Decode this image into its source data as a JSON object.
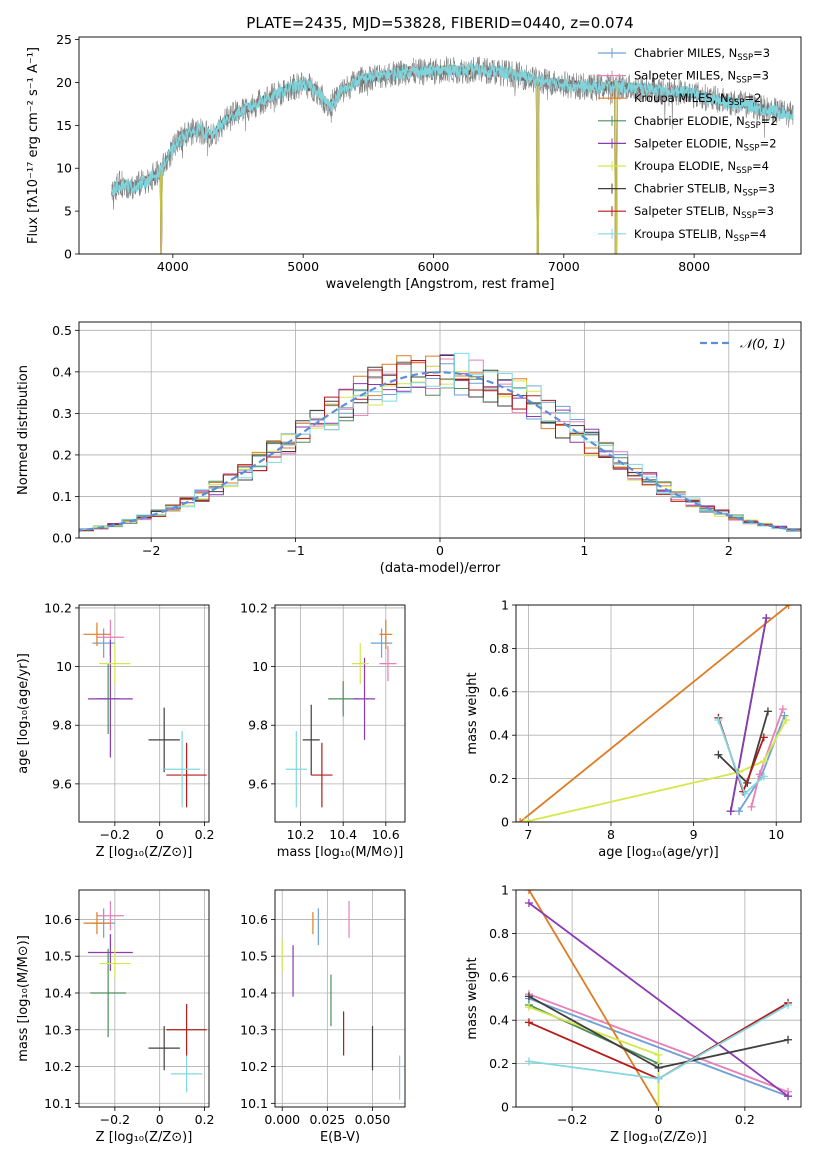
{
  "page_title": "PLATE=2435, MJD=53828, FIBERID=0440, z=0.074",
  "colors": {
    "Chabrier MILES": "#6fa0d6",
    "Salpeter MILES": "#e87fb6",
    "Kroupa MILES": "#de7c24",
    "Chabrier ELODIE": "#4c8f5c",
    "Salpeter ELODIE": "#8a3ab2",
    "Kroupa ELODIE": "#d4e84c",
    "Chabrier STELIB": "#404040",
    "Salpeter STELIB": "#b51b1b",
    "Kroupa STELIB": "#80d8e0",
    "normal": "#5b8fd8"
  },
  "chart_data": [
    {
      "id": "spectrum",
      "type": "line",
      "title": "PLATE=2435, MJD=53828, FIBERID=0440, z=0.074",
      "xlabel": "wavelength [Angstrom, rest frame]",
      "ylabel": "Flux [fλ10⁻¹⁷ erg cm⁻² s⁻¹ A⁻¹]",
      "xlim": [
        3280,
        8820
      ],
      "ylim": [
        0,
        25.3
      ],
      "xticks": [
        4000,
        5000,
        6000,
        7000,
        8000
      ],
      "yticks": [
        0,
        5,
        10,
        15,
        20,
        25
      ],
      "legend_position": "top-right",
      "legend": [
        {
          "label": "Chabrier MILES, N",
          "sub": "SSP",
          "tail": "=3"
        },
        {
          "label": "Salpeter MILES, N",
          "sub": "SSP",
          "tail": "=3"
        },
        {
          "label": "Kroupa MILES, N",
          "sub": "SSP",
          "tail": "=2"
        },
        {
          "label": "Chabrier ELODIE, N",
          "sub": "SSP",
          "tail": "=2"
        },
        {
          "label": "Salpeter ELODIE, N",
          "sub": "SSP",
          "tail": "=2"
        },
        {
          "label": "Kroupa ELODIE, N",
          "sub": "SSP",
          "tail": "=4"
        },
        {
          "label": "Chabrier STELIB, N",
          "sub": "SSP",
          "tail": "=3"
        },
        {
          "label": "Salpeter STELIB, N",
          "sub": "SSP",
          "tail": "=3"
        },
        {
          "label": "Kroupa STELIB, N",
          "sub": "SSP",
          "tail": "=4"
        }
      ],
      "continuum": {
        "x": [
          3530,
          3600,
          3700,
          3800,
          3900,
          4000,
          4100,
          4200,
          4300,
          4400,
          4500,
          4600,
          4700,
          4800,
          4900,
          5000,
          5100,
          5200,
          5300,
          5400,
          5500,
          5600,
          5700,
          5800,
          5900,
          6000,
          6100,
          6200,
          6300,
          6400,
          6500,
          6600,
          6700,
          6800,
          6900,
          7000,
          7100,
          7200,
          7300,
          7400,
          7500,
          7600,
          7700,
          7800,
          7900,
          8000,
          8100,
          8200,
          8300,
          8400,
          8500,
          8600,
          8700,
          8760
        ],
        "y": [
          7.5,
          8.2,
          7.8,
          8.6,
          9.5,
          12.2,
          14.0,
          14.5,
          13.8,
          15.5,
          16.5,
          17.2,
          18.0,
          18.6,
          19.3,
          19.8,
          19.2,
          17.2,
          19.0,
          20.0,
          20.6,
          20.8,
          21.0,
          21.3,
          21.2,
          21.3,
          21.5,
          21.4,
          21.5,
          21.4,
          21.2,
          21.0,
          20.7,
          20.2,
          20.0,
          19.8,
          19.6,
          19.4,
          19.5,
          19.6,
          19.4,
          19.3,
          19.2,
          18.8,
          18.9,
          18.7,
          18.2,
          17.9,
          17.6,
          17.4,
          17.0,
          16.7,
          16.4,
          16.2
        ],
        "dips": [
          {
            "x": 3910,
            "y": 0
          },
          {
            "x": 3970,
            "y": 7.0
          },
          {
            "x": 4102,
            "y": 11.0
          },
          {
            "x": 4310,
            "y": 10.5
          },
          {
            "x": 4340,
            "y": 11.2
          },
          {
            "x": 4861,
            "y": 16.8
          },
          {
            "x": 5175,
            "y": 14.8
          },
          {
            "x": 5890,
            "y": 18.0
          },
          {
            "x": 6563,
            "y": 18.2
          },
          {
            "x": 6800,
            "y": 0
          },
          {
            "x": 7400,
            "y": 0
          }
        ],
        "note": ""
      }
    },
    {
      "id": "residuals",
      "type": "histogram",
      "xlabel": "(data-model)/error",
      "ylabel": "Normed distribution",
      "xlim": [
        -2.5,
        2.5
      ],
      "ylim": [
        0,
        0.52
      ],
      "xticks": [
        -2,
        -1,
        0,
        1,
        2
      ],
      "yticks": [
        0.0,
        0.1,
        0.2,
        0.3,
        0.4,
        0.5
      ],
      "legend_label": "𝒩(0, 1)",
      "legend_position": "top-right",
      "bin_width": 0.1,
      "bin_start": -2.6
    },
    {
      "id": "age_vs_Z",
      "type": "scatter",
      "xlabel": "Z [log₁₀(Z/Z⊙)]",
      "ylabel": "age  [log₁₀(age/yr)]",
      "xlim": [
        -0.36,
        0.22
      ],
      "ylim": [
        9.47,
        10.21
      ],
      "xticks": [
        -0.2,
        0.0,
        0.2
      ],
      "yticks": [
        9.6,
        9.8,
        10.0,
        10.2
      ],
      "points": [
        {
          "name": "Chabrier MILES",
          "x": -0.25,
          "y": 10.08,
          "xerr": 0.05,
          "yerr": 0.05
        },
        {
          "name": "Salpeter MILES",
          "x": -0.22,
          "y": 10.1,
          "xerr": 0.06,
          "yerr": 0.06
        },
        {
          "name": "Kroupa MILES",
          "x": -0.28,
          "y": 10.11,
          "xerr": 0.06,
          "yerr": 0.04
        },
        {
          "name": "Chabrier ELODIE",
          "x": -0.23,
          "y": 9.89,
          "xerr": 0.05,
          "yerr": 0.12
        },
        {
          "name": "Salpeter ELODIE",
          "x": -0.22,
          "y": 9.89,
          "xerr": 0.1,
          "yerr": 0.2
        },
        {
          "name": "Kroupa ELODIE",
          "x": -0.2,
          "y": 10.01,
          "xerr": 0.07,
          "yerr": 0.07
        },
        {
          "name": "Chabrier STELIB",
          "x": 0.02,
          "y": 9.75,
          "xerr": 0.07,
          "yerr": 0.11
        },
        {
          "name": "Salpeter STELIB",
          "x": 0.12,
          "y": 9.63,
          "xerr": 0.09,
          "yerr": 0.11
        },
        {
          "name": "Kroupa STELIB",
          "x": 0.1,
          "y": 9.65,
          "xerr": 0.08,
          "yerr": 0.13
        }
      ]
    },
    {
      "id": "age_vs_mass",
      "type": "scatter",
      "xlabel": "mass [log₁₀(M/M⊙)]",
      "ylabel": "",
      "xlim": [
        10.08,
        10.69
      ],
      "ylim": [
        9.47,
        10.21
      ],
      "xticks": [
        10.2,
        10.4,
        10.6
      ],
      "yticks": [
        9.6,
        9.8,
        10.0,
        10.2
      ],
      "points": [
        {
          "name": "Chabrier MILES",
          "x": 10.58,
          "y": 10.08,
          "xerr": 0.05,
          "yerr": 0.05
        },
        {
          "name": "Salpeter MILES",
          "x": 10.61,
          "y": 10.01,
          "xerr": 0.04,
          "yerr": 0.06
        },
        {
          "name": "Kroupa MILES",
          "x": 10.6,
          "y": 10.11,
          "xerr": 0.03,
          "yerr": 0.05
        },
        {
          "name": "Chabrier ELODIE",
          "x": 10.4,
          "y": 9.89,
          "xerr": 0.07,
          "yerr": 0.06
        },
        {
          "name": "Salpeter ELODIE",
          "x": 10.5,
          "y": 9.89,
          "xerr": 0.05,
          "yerr": 0.14
        },
        {
          "name": "Kroupa ELODIE",
          "x": 10.48,
          "y": 10.01,
          "xerr": 0.04,
          "yerr": 0.07
        },
        {
          "name": "Chabrier STELIB",
          "x": 10.25,
          "y": 9.75,
          "xerr": 0.04,
          "yerr": 0.12
        },
        {
          "name": "Salpeter STELIB",
          "x": 10.3,
          "y": 9.63,
          "xerr": 0.05,
          "yerr": 0.11
        },
        {
          "name": "Kroupa STELIB",
          "x": 10.18,
          "y": 9.65,
          "xerr": 0.05,
          "yerr": 0.13
        }
      ]
    },
    {
      "id": "weight_vs_age",
      "type": "line",
      "xlabel": "age  [log₁₀(age/yr)]",
      "ylabel": "mass weight",
      "xlim": [
        6.85,
        10.3
      ],
      "ylim": [
        0,
        1.0
      ],
      "xticks": [
        7,
        8,
        9,
        10
      ],
      "yticks": [
        0.0,
        0.2,
        0.4,
        0.6,
        0.8,
        1.0
      ],
      "series": [
        {
          "name": "Chabrier MILES",
          "x": [
            9.55,
            9.82,
            10.1
          ],
          "y": [
            0.05,
            0.21,
            0.49
          ]
        },
        {
          "name": "Salpeter MILES",
          "x": [
            9.7,
            9.8,
            10.08
          ],
          "y": [
            0.07,
            0.22,
            0.52
          ]
        },
        {
          "name": "Kroupa MILES",
          "x": [
            6.9,
            10.15
          ],
          "y": [
            0.0,
            1.0
          ]
        },
        {
          "name": "Chabrier ELODIE",
          "x": [
            9.45,
            9.88
          ],
          "y": [
            0.05,
            0.94
          ]
        },
        {
          "name": "Salpeter ELODIE",
          "x": [
            9.45,
            9.88
          ],
          "y": [
            0.05,
            0.94
          ]
        },
        {
          "name": "Kroupa ELODIE",
          "x": [
            6.95,
            9.55,
            9.85,
            10.12
          ],
          "y": [
            0.0,
            0.23,
            0.28,
            0.47
          ]
        },
        {
          "name": "Chabrier STELIB",
          "x": [
            9.3,
            9.65,
            9.9
          ],
          "y": [
            0.31,
            0.18,
            0.51
          ]
        },
        {
          "name": "Salpeter STELIB",
          "x": [
            9.3,
            9.6,
            9.85
          ],
          "y": [
            0.48,
            0.14,
            0.39
          ]
        },
        {
          "name": "Kroupa STELIB",
          "x": [
            9.3,
            9.62,
            9.85
          ],
          "y": [
            0.47,
            0.13,
            0.21
          ]
        }
      ]
    },
    {
      "id": "mass_vs_Z",
      "type": "scatter",
      "xlabel": "Z [log₁₀(Z/Z⊙)]",
      "ylabel": "mass [log₁₀(M/M⊙)]",
      "xlim": [
        -0.36,
        0.22
      ],
      "ylim": [
        10.09,
        10.68
      ],
      "xticks": [
        -0.2,
        0.0,
        0.2
      ],
      "yticks": [
        10.1,
        10.2,
        10.3,
        10.4,
        10.5,
        10.6
      ],
      "points": [
        {
          "name": "Chabrier MILES",
          "x": -0.25,
          "y": 10.59,
          "xerr": 0.05,
          "yerr": 0.04
        },
        {
          "name": "Salpeter MILES",
          "x": -0.22,
          "y": 10.61,
          "xerr": 0.06,
          "yerr": 0.04
        },
        {
          "name": "Kroupa MILES",
          "x": -0.28,
          "y": 10.59,
          "xerr": 0.06,
          "yerr": 0.03
        },
        {
          "name": "Chabrier ELODIE",
          "x": -0.23,
          "y": 10.4,
          "xerr": 0.08,
          "yerr": 0.12
        },
        {
          "name": "Salpeter ELODIE",
          "x": -0.22,
          "y": 10.51,
          "xerr": 0.1,
          "yerr": 0.05
        },
        {
          "name": "Kroupa ELODIE",
          "x": -0.2,
          "y": 10.48,
          "xerr": 0.07,
          "yerr": 0.04
        },
        {
          "name": "Chabrier STELIB",
          "x": 0.02,
          "y": 10.25,
          "xerr": 0.07,
          "yerr": 0.06
        },
        {
          "name": "Salpeter STELIB",
          "x": 0.12,
          "y": 10.3,
          "xerr": 0.09,
          "yerr": 0.07
        },
        {
          "name": "Kroupa STELIB",
          "x": 0.12,
          "y": 10.18,
          "xerr": 0.07,
          "yerr": 0.05
        }
      ]
    },
    {
      "id": "mass_vs_EBV",
      "type": "scatter",
      "xlabel": "E(B-V)",
      "ylabel": "",
      "xlim": [
        -0.004,
        0.068
      ],
      "ylim": [
        10.09,
        10.68
      ],
      "xticks": [
        0.0,
        0.025,
        0.05
      ],
      "xticklabels": [
        "0.000",
        "0.025",
        "0.050"
      ],
      "yticks": [
        10.1,
        10.2,
        10.3,
        10.4,
        10.5,
        10.6
      ],
      "points": [
        {
          "name": "Chabrier MILES",
          "x": 0.02,
          "y": 10.58,
          "yerr": 0.05
        },
        {
          "name": "Salpeter MILES",
          "x": 0.037,
          "y": 10.6,
          "yerr": 0.05
        },
        {
          "name": "Kroupa MILES",
          "x": 0.017,
          "y": 10.59,
          "yerr": 0.03
        },
        {
          "name": "Chabrier ELODIE",
          "x": 0.027,
          "y": 10.38,
          "yerr": 0.07
        },
        {
          "name": "Salpeter ELODIE",
          "x": 0.006,
          "y": 10.46,
          "yerr": 0.07
        },
        {
          "name": "Kroupa ELODIE",
          "x": 0.0,
          "y": 10.5,
          "yerr": 0.04
        },
        {
          "name": "Chabrier STELIB",
          "x": 0.05,
          "y": 10.25,
          "yerr": 0.06
        },
        {
          "name": "Salpeter STELIB",
          "x": 0.034,
          "y": 10.29,
          "yerr": 0.06
        },
        {
          "name": "Kroupa STELIB",
          "x": 0.065,
          "y": 10.17,
          "yerr": 0.06
        }
      ]
    },
    {
      "id": "weight_vs_Z",
      "type": "line",
      "xlabel": "Z [log₁₀(Z/Z⊙)]",
      "ylabel": "mass weight",
      "xlim": [
        -0.33,
        0.33
      ],
      "ylim": [
        0,
        1.0
      ],
      "xticks": [
        -0.2,
        0.0,
        0.2
      ],
      "yticks": [
        0.0,
        0.2,
        0.4,
        0.6,
        0.8,
        1.0
      ],
      "series": [
        {
          "name": "Chabrier MILES",
          "x": [
            -0.3,
            0.3
          ],
          "y": [
            0.5,
            0.05
          ]
        },
        {
          "name": "Salpeter MILES",
          "x": [
            -0.3,
            0.3
          ],
          "y": [
            0.52,
            0.07
          ]
        },
        {
          "name": "Kroupa MILES",
          "x": [
            -0.3,
            0.0
          ],
          "y": [
            1.0,
            0.0
          ]
        },
        {
          "name": "Chabrier ELODIE",
          "x": [
            -0.3,
            0.0
          ],
          "y": [
            0.47,
            0.2
          ]
        },
        {
          "name": "Salpeter ELODIE",
          "x": [
            -0.3,
            0.3
          ],
          "y": [
            0.94,
            0.05
          ]
        },
        {
          "name": "Kroupa ELODIE",
          "x": [
            -0.3,
            0.0,
            0.0
          ],
          "y": [
            0.46,
            0.24,
            0.0
          ]
        },
        {
          "name": "Chabrier STELIB",
          "x": [
            -0.3,
            0.0,
            0.3
          ],
          "y": [
            0.51,
            0.18,
            0.31
          ]
        },
        {
          "name": "Salpeter STELIB",
          "x": [
            -0.3,
            0.0,
            0.3
          ],
          "y": [
            0.39,
            0.13,
            0.48
          ]
        },
        {
          "name": "Kroupa STELIB",
          "x": [
            -0.3,
            0.0,
            0.3
          ],
          "y": [
            0.21,
            0.13,
            0.47
          ]
        }
      ]
    }
  ]
}
